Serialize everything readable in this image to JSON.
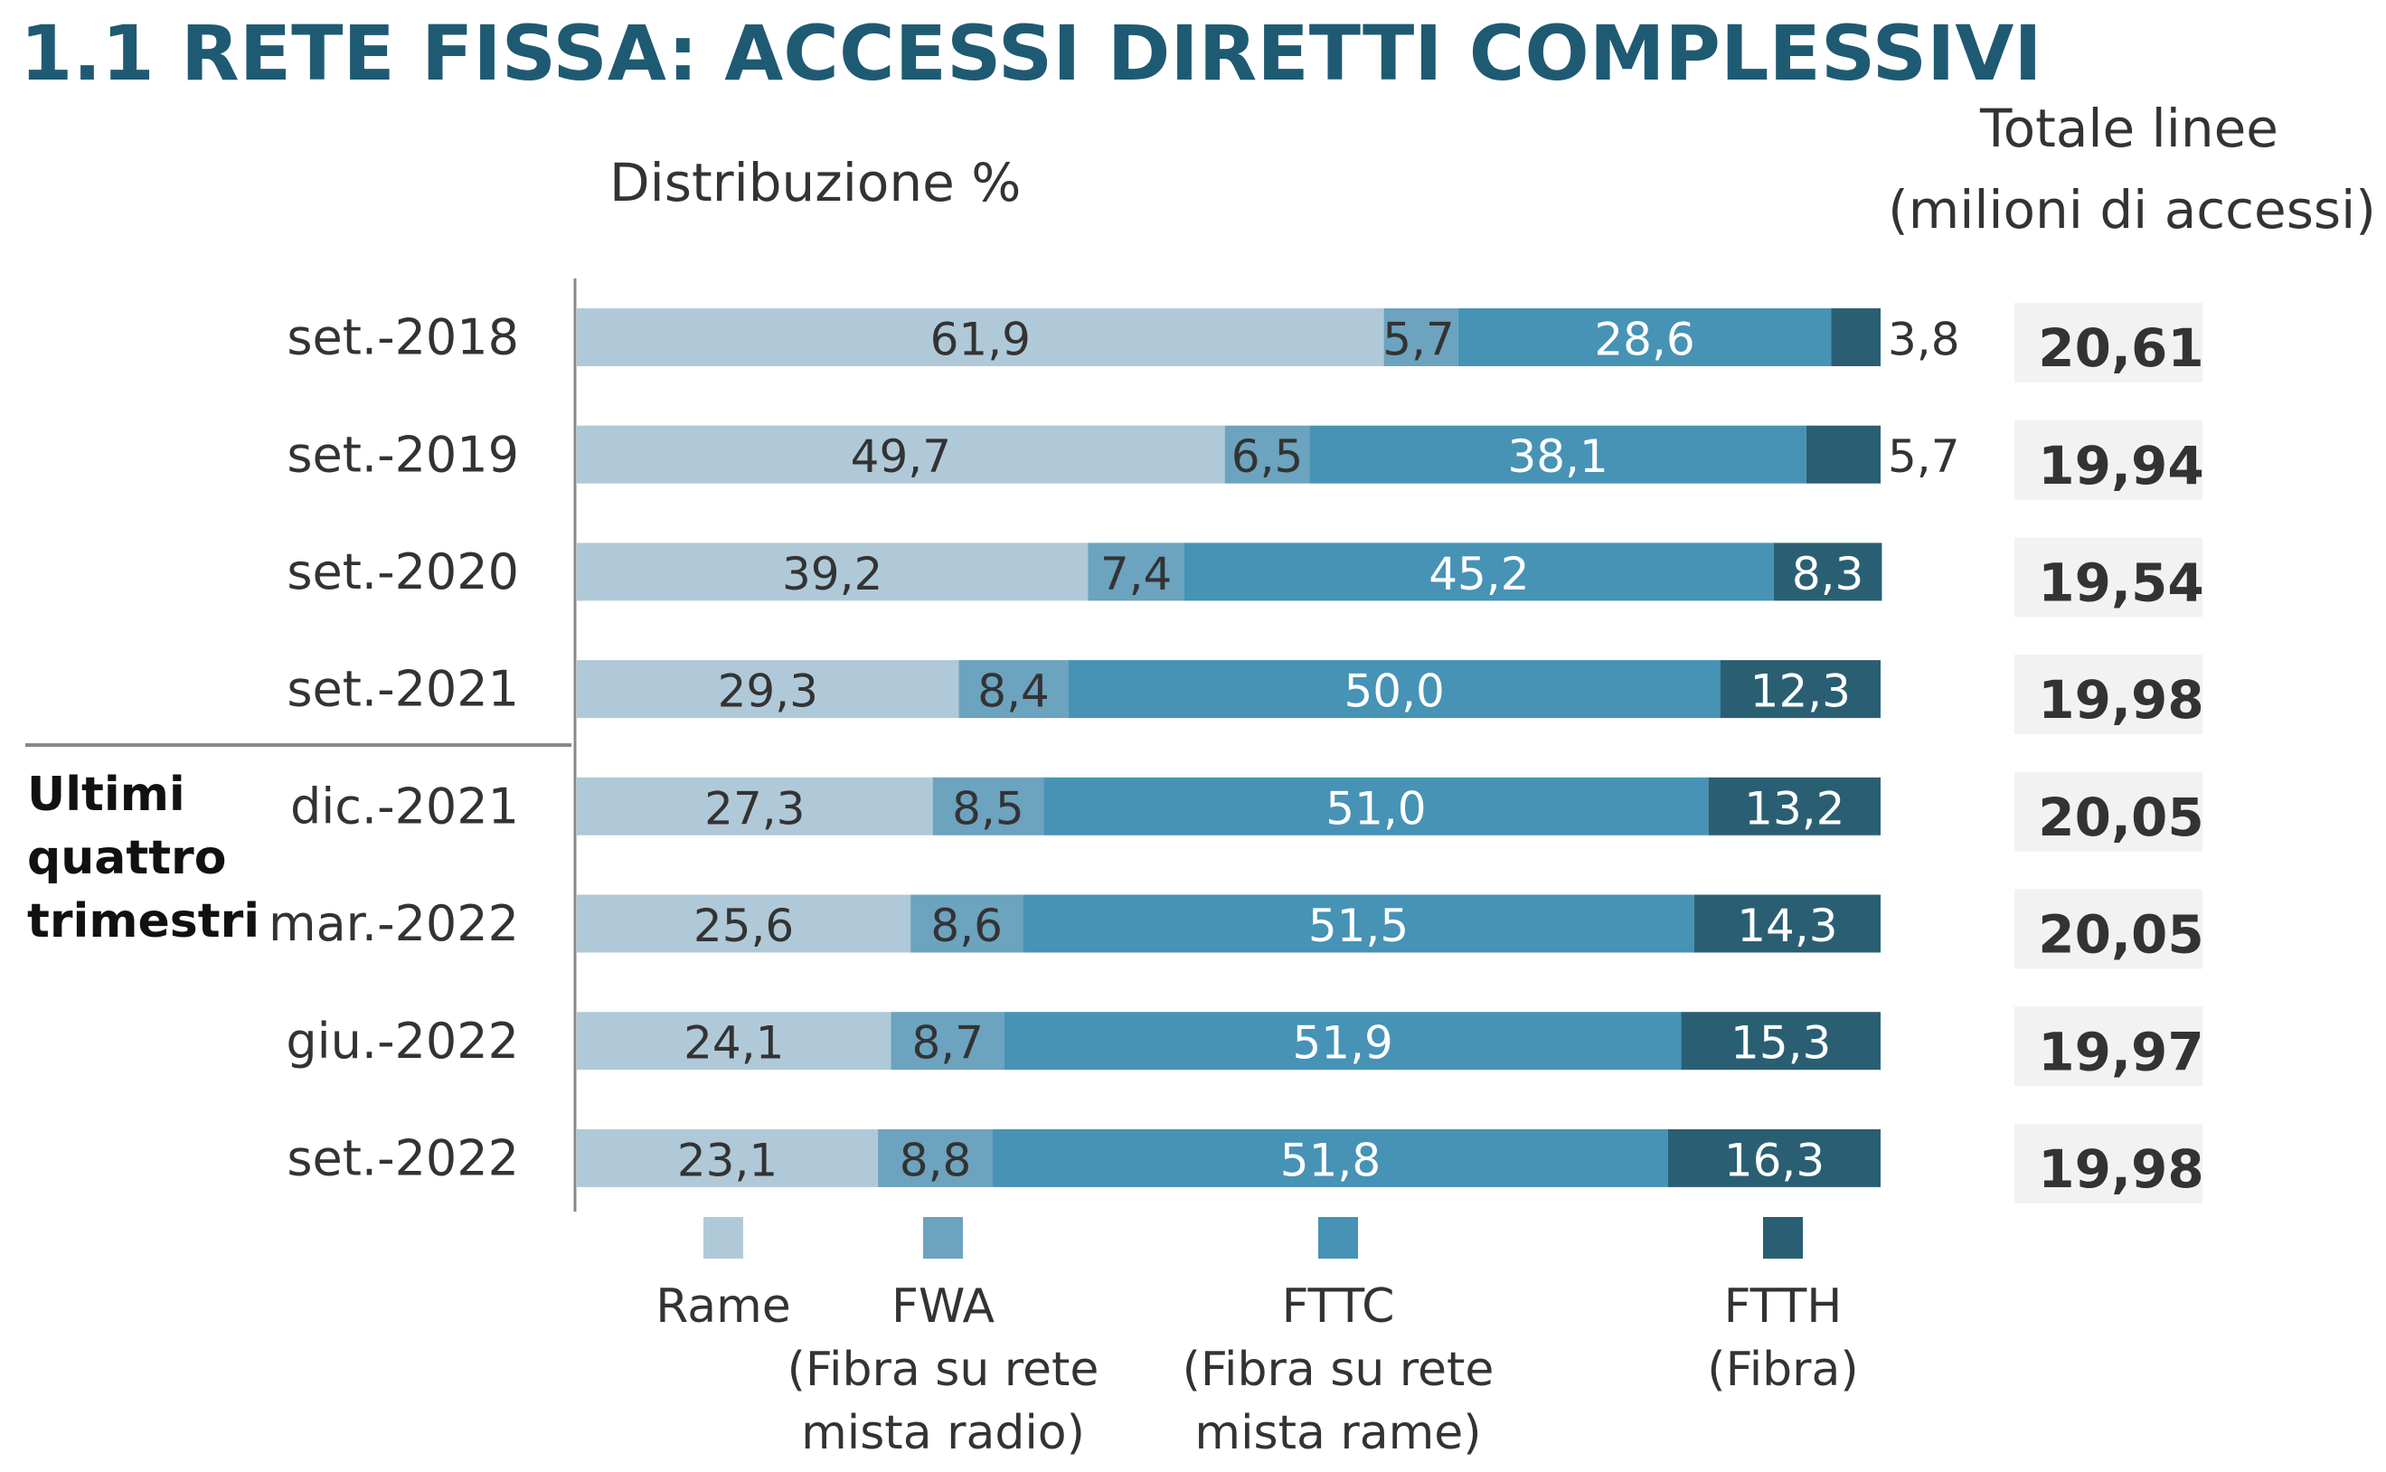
{
  "header": {
    "title": "1.1 RETE FISSA: ACCESSI DIRETTI COMPLESSIVI",
    "distribution_label": "Distribuzione %",
    "totals_label_line1": "Totale linee",
    "totals_label_line2": "(milioni di accessi)"
  },
  "group_label_lines": [
    "Ultimi",
    "quattro",
    "trimestri"
  ],
  "colors": {
    "Rame": "#b0c9d8",
    "FWA": "#6ca3bf",
    "FTTC": "#4693b6",
    "FTTH": "#2a5f73",
    "title": "#1f5a73",
    "totals_box": "#f2f2f2"
  },
  "legend": [
    {
      "series": "Rame",
      "lines": [
        "Rame"
      ]
    },
    {
      "series": "FWA",
      "lines": [
        "FWA",
        "(Fibra su rete",
        "mista radio)"
      ]
    },
    {
      "series": "FTTC",
      "lines": [
        "FTTC",
        "(Fibra su rete",
        "mista rame)"
      ]
    },
    {
      "series": "FTTH",
      "lines": [
        "FTTH",
        "(Fibra)"
      ]
    }
  ],
  "chart_data": {
    "type": "bar",
    "orientation": "horizontal",
    "stacked": "percent",
    "title": "1.1 RETE FISSA: ACCESSI DIRETTI COMPLESSIVI",
    "subtitle": "Distribuzione %",
    "categories": [
      "set.-2018",
      "set.-2019",
      "set.-2020",
      "set.-2021",
      "dic.-2021",
      "mar.-2022",
      "giu.-2022",
      "set.-2022"
    ],
    "series": [
      {
        "name": "Rame",
        "values": [
          61.9,
          49.7,
          39.2,
          29.3,
          27.3,
          25.6,
          24.1,
          23.1
        ],
        "labels": [
          "61,9",
          "49,7",
          "39,2",
          "29,3",
          "27,3",
          "25,6",
          "24,1",
          "23,1"
        ]
      },
      {
        "name": "FWA",
        "values": [
          5.7,
          6.5,
          7.4,
          8.4,
          8.5,
          8.6,
          8.7,
          8.8
        ],
        "labels": [
          "5,7",
          "6,5",
          "7,4",
          "8,4",
          "8,5",
          "8,6",
          "8,7",
          "8,8"
        ]
      },
      {
        "name": "FTTC",
        "values": [
          28.6,
          38.1,
          45.2,
          50.0,
          51.0,
          51.5,
          51.9,
          51.8
        ],
        "labels": [
          "28,6",
          "38,1",
          "45,2",
          "50,0",
          "51,0",
          "51,5",
          "51,9",
          "51,8"
        ]
      },
      {
        "name": "FTTH",
        "values": [
          3.8,
          5.7,
          8.3,
          12.3,
          13.2,
          14.3,
          15.3,
          16.3
        ],
        "labels": [
          "3,8",
          "5,7",
          "8,3",
          "12,3",
          "13,2",
          "14,3",
          "15,3",
          "16,3"
        ]
      }
    ],
    "totals": {
      "label": "Totale linee (milioni di accessi)",
      "values": [
        20.61,
        19.94,
        19.54,
        19.98,
        20.05,
        20.05,
        19.97,
        19.98
      ],
      "labels": [
        "20,61",
        "19,94",
        "19,54",
        "19,98",
        "20,05",
        "20,05",
        "19,97",
        "19,98"
      ]
    },
    "xlim": [
      0,
      100
    ],
    "grid": false,
    "legend_position": "bottom"
  }
}
